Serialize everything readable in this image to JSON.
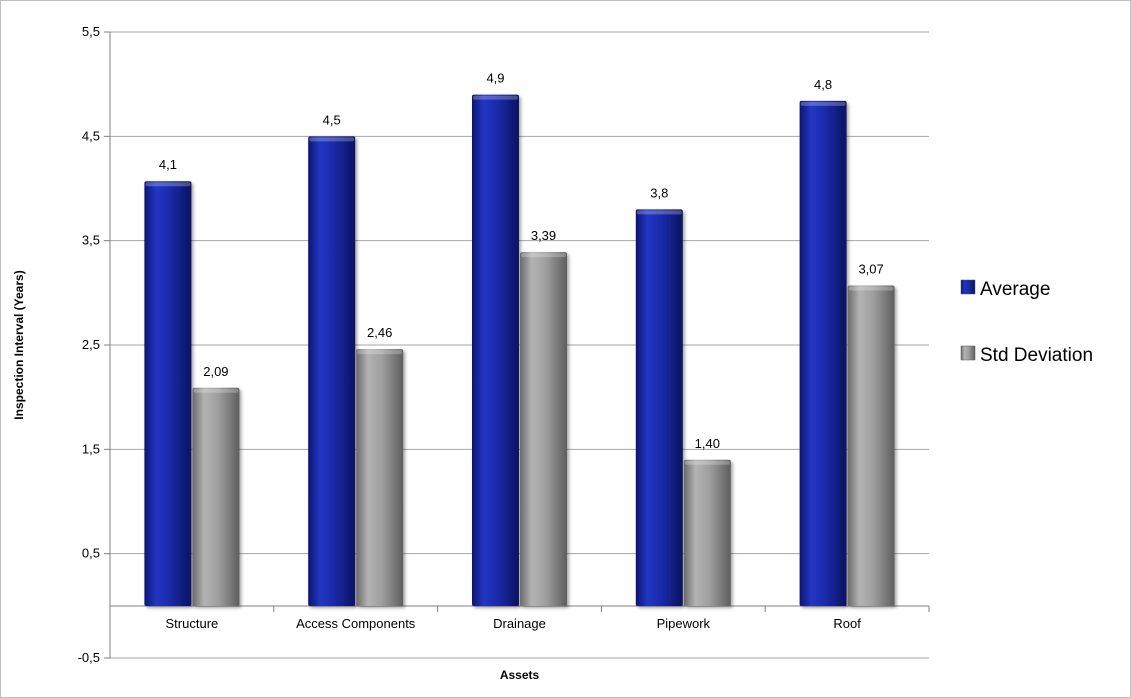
{
  "chart_data": {
    "type": "bar",
    "categories": [
      "Structure",
      "Access Components",
      "Drainage",
      "Pipework",
      "Roof"
    ],
    "series": [
      {
        "name": "Average",
        "color": "#1a2aa8",
        "values": [
          4.07,
          4.5,
          4.9,
          3.8,
          4.84
        ],
        "labels": [
          "4,1",
          "4,5",
          "4,9",
          "3,8",
          "4,8"
        ]
      },
      {
        "name": "Std Deviation",
        "color": "#9e9e9e",
        "values": [
          2.09,
          2.46,
          3.39,
          1.4,
          3.07
        ],
        "labels": [
          "2,09",
          "2,46",
          "3,39",
          "1,40",
          "3,07"
        ]
      }
    ],
    "ylim": [
      -0.5,
      5.5
    ],
    "yticks": [
      -0.5,
      0.5,
      1.5,
      2.5,
      3.5,
      4.5,
      5.5
    ],
    "ytick_labels": [
      "-0,5",
      "0,5",
      "1,5",
      "2,5",
      "3,5",
      "4,5",
      "5,5"
    ],
    "xlabel": "Assets",
    "ylabel": "Inspection Interval (Years)",
    "title": "",
    "grid": true,
    "legend_position": "right"
  }
}
